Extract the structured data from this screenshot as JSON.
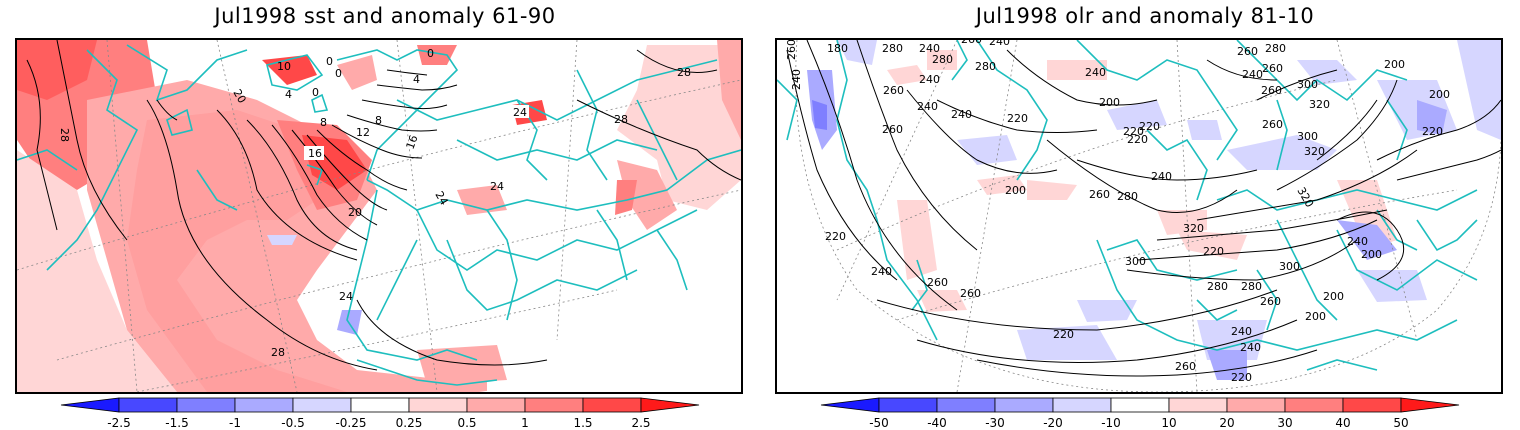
{
  "panels": [
    {
      "title": "Jul1998 sst and anomaly 61-90",
      "variable": "sst",
      "colorbar": {
        "labels": [
          "-2.5",
          "-1.5",
          "-1",
          "-0.5",
          "-0.25",
          "0.25",
          "0.5",
          "1",
          "1.5",
          "2.5"
        ],
        "colors": [
          "#1a1aff",
          "#4848ff",
          "#7f7fff",
          "#aaaaff",
          "#d6d6ff",
          "#ffffff",
          "#ffd6d6",
          "#ffaaaa",
          "#ff7f7f",
          "#ff4848",
          "#ff1a1a"
        ]
      },
      "contour_labels": [
        "0",
        "0",
        "0",
        "0",
        "4",
        "4",
        "8",
        "8",
        "12",
        "16",
        "16",
        "20",
        "20",
        "24",
        "24",
        "24",
        "28",
        "28",
        "28",
        "28",
        "10"
      ]
    },
    {
      "title": "Jul1998 olr and anomaly 81-10",
      "variable": "olr",
      "colorbar": {
        "labels": [
          "-50",
          "-40",
          "-30",
          "-20",
          "-10",
          "10",
          "20",
          "30",
          "40",
          "50"
        ],
        "colors": [
          "#1a1aff",
          "#4848ff",
          "#7f7fff",
          "#aaaaff",
          "#d6d6ff",
          "#ffffff",
          "#ffd6d6",
          "#ffaaaa",
          "#ff7f7f",
          "#ff4848",
          "#ff1a1a"
        ]
      },
      "contour_labels": [
        "180",
        "280",
        "240",
        "280",
        "240",
        "260",
        "240",
        "260",
        "240",
        "280",
        "260",
        "240",
        "240",
        "220",
        "260",
        "240",
        "200",
        "220",
        "220",
        "240",
        "280",
        "260",
        "260",
        "300",
        "320",
        "260",
        "300",
        "320",
        "200",
        "200",
        "220",
        "260",
        "320",
        "300",
        "280",
        "220",
        "240",
        "200",
        "260",
        "240",
        "220",
        "240",
        "260",
        "300",
        "280",
        "280",
        "260",
        "200",
        "200",
        "200",
        "220",
        "240",
        "260",
        "220",
        "260",
        "240",
        "220",
        "320"
      ]
    }
  ],
  "colors": {
    "coastline": "#1ebebe",
    "contour": "#000000",
    "gridline": "#888888"
  }
}
